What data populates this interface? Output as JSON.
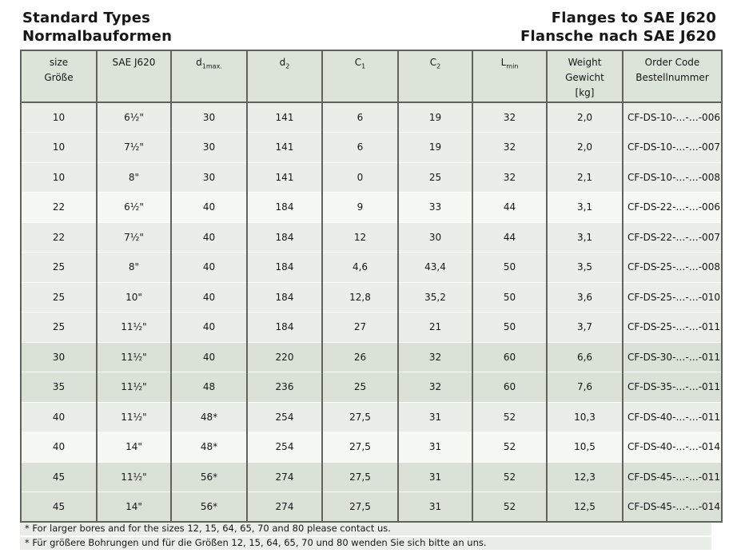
{
  "page": {
    "title_left_line1": "Standard Types",
    "title_left_line2": "Normalbauformen",
    "title_right_line1": "Flanges to SAE J620",
    "title_right_line2": "Flansche nach SAE J620"
  },
  "table": {
    "headers": [
      {
        "line1": "size",
        "line2": "Größe"
      },
      {
        "line1": "SAE J620"
      },
      {
        "base": "d",
        "sub": "1max."
      },
      {
        "base": "d",
        "sub": "2"
      },
      {
        "base": "C",
        "sub": "1"
      },
      {
        "base": "C",
        "sub": "2"
      },
      {
        "base": "L",
        "sub": "min"
      },
      {
        "line1": "Weight",
        "line2": "Gewicht",
        "line3": "[kg]"
      },
      {
        "line1": "Order Code",
        "line2": "Bestellnummer"
      }
    ],
    "rows": [
      {
        "band": "light",
        "cells": [
          "10",
          "6½\"",
          "30",
          "141",
          "6",
          "19",
          "32",
          "2,0",
          "CF-DS-10-…-…-006"
        ]
      },
      {
        "band": "light",
        "cells": [
          "10",
          "7½\"",
          "30",
          "141",
          "6",
          "19",
          "32",
          "2,0",
          "CF-DS-10-…-…-007"
        ]
      },
      {
        "band": "light",
        "cells": [
          "10",
          "8\"",
          "30",
          "141",
          "0",
          "25",
          "32",
          "2,1",
          "CF-DS-10-…-…-008"
        ]
      },
      {
        "band": "lighter",
        "cells": [
          "22",
          "6½\"",
          "40",
          "184",
          "9",
          "33",
          "44",
          "3,1",
          "CF-DS-22-…-…-006"
        ]
      },
      {
        "band": "light",
        "cells": [
          "22",
          "7½\"",
          "40",
          "184",
          "12",
          "30",
          "44",
          "3,1",
          "CF-DS-22-…-…-007"
        ]
      },
      {
        "band": "light",
        "cells": [
          "25",
          "8\"",
          "40",
          "184",
          "4,6",
          "43,4",
          "50",
          "3,5",
          "CF-DS-25-…-…-008"
        ]
      },
      {
        "band": "light",
        "cells": [
          "25",
          "10\"",
          "40",
          "184",
          "12,8",
          "35,2",
          "50",
          "3,6",
          "CF-DS-25-…-…-010"
        ]
      },
      {
        "band": "light",
        "cells": [
          "25",
          "11½\"",
          "40",
          "184",
          "27",
          "21",
          "50",
          "3,7",
          "CF-DS-25-…-…-011"
        ]
      },
      {
        "band": "dark",
        "cells": [
          "30",
          "11½\"",
          "40",
          "220",
          "26",
          "32",
          "60",
          "6,6",
          "CF-DS-30-…-…-011"
        ]
      },
      {
        "band": "dark",
        "cells": [
          "35",
          "11½\"",
          "48",
          "236",
          "25",
          "32",
          "60",
          "7,6",
          "CF-DS-35-…-…-011"
        ]
      },
      {
        "band": "light",
        "cells": [
          "40",
          "11½\"",
          "48*",
          "254",
          "27,5",
          "31",
          "52",
          "10,3",
          "CF-DS-40-…-…-011"
        ]
      },
      {
        "band": "lighter",
        "cells": [
          "40",
          "14\"",
          "48*",
          "254",
          "27,5",
          "31",
          "52",
          "10,5",
          "CF-DS-40-…-…-014"
        ]
      },
      {
        "band": "dark",
        "cells": [
          "45",
          "11½\"",
          "56*",
          "274",
          "27,5",
          "31",
          "52",
          "12,3",
          "CF-DS-45-…-…-011"
        ]
      },
      {
        "band": "dark",
        "cells": [
          "45",
          "14\"",
          "56*",
          "274",
          "27,5",
          "31",
          "52",
          "12,5",
          "CF-DS-45-…-…-014"
        ]
      }
    ]
  },
  "footnotes": {
    "line1": "* For larger bores and for the sizes 12, 15, 64, 65, 70 and 80 please contact us.",
    "line2": "* Für größere Bohrungen und für die Größen 12, 15, 64, 65, 70 und 80 wenden Sie sich bitte an uns."
  },
  "colors": {
    "header_bg": "#dce3d8",
    "row_light": "#eaeee8",
    "row_lighter": "#f5f8f3",
    "row_dark": "#dae1d6",
    "footnote_bg": "#e9efe8",
    "border": "#5f6359",
    "text": "#161616"
  }
}
